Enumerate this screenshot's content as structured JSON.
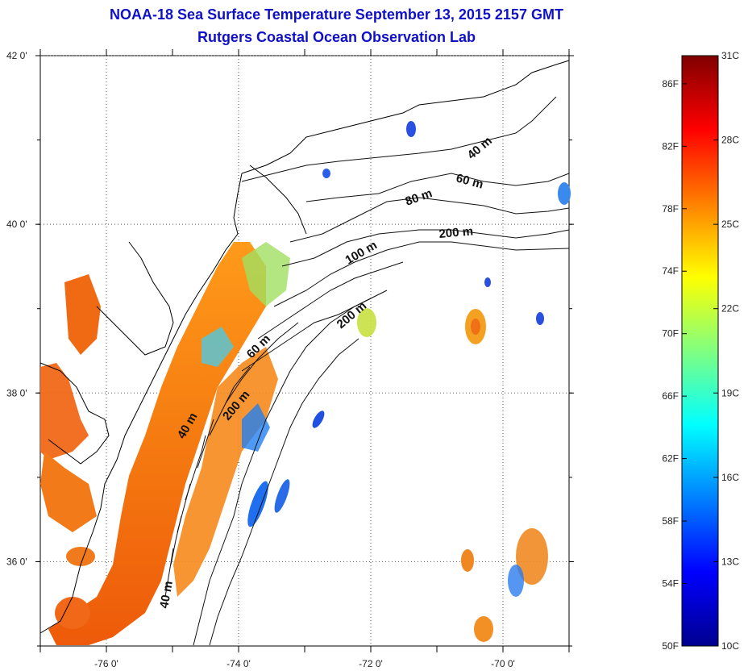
{
  "title": "NOAA-18 Sea Surface Temperature September 13, 2015 2157 GMT",
  "subtitle": "Rutgers Coastal Ocean Observation Lab",
  "map": {
    "lat_ticks": [
      {
        "value": 42,
        "label": "42 0'"
      },
      {
        "value": 40,
        "label": "40 0'"
      },
      {
        "value": 38,
        "label": "38 0'"
      },
      {
        "value": 36,
        "label": "36 0'"
      }
    ],
    "lon_ticks": [
      {
        "value": -76,
        "label": "-76 0'"
      },
      {
        "value": -74,
        "label": "-74 0'"
      },
      {
        "value": -72,
        "label": "-72 0'"
      },
      {
        "value": -70,
        "label": "-70 0'"
      }
    ],
    "lat_range": [
      35,
      42
    ],
    "lon_range": [
      -77,
      -69
    ],
    "grid": "dotted",
    "contour_labels": [
      "40 m",
      "60 m",
      "80 m",
      "200 m",
      "100 m",
      "200 m",
      "60 m",
      "200 m",
      "40 m",
      "40 m"
    ]
  },
  "colorbar": {
    "min_c": 10,
    "max_c": 31,
    "celsius_labels": [
      "31C",
      "28C",
      "25C",
      "22C",
      "19C",
      "16C",
      "13C",
      "10C"
    ],
    "fahrenheit_labels": [
      "86F",
      "82F",
      "78F",
      "74F",
      "70F",
      "66F",
      "62F",
      "58F",
      "54F",
      "50F"
    ],
    "colormap": [
      "#00008f",
      "#0000ff",
      "#0080ff",
      "#00ffff",
      "#80ff80",
      "#ffff00",
      "#ff8000",
      "#ff0000",
      "#800000"
    ]
  }
}
